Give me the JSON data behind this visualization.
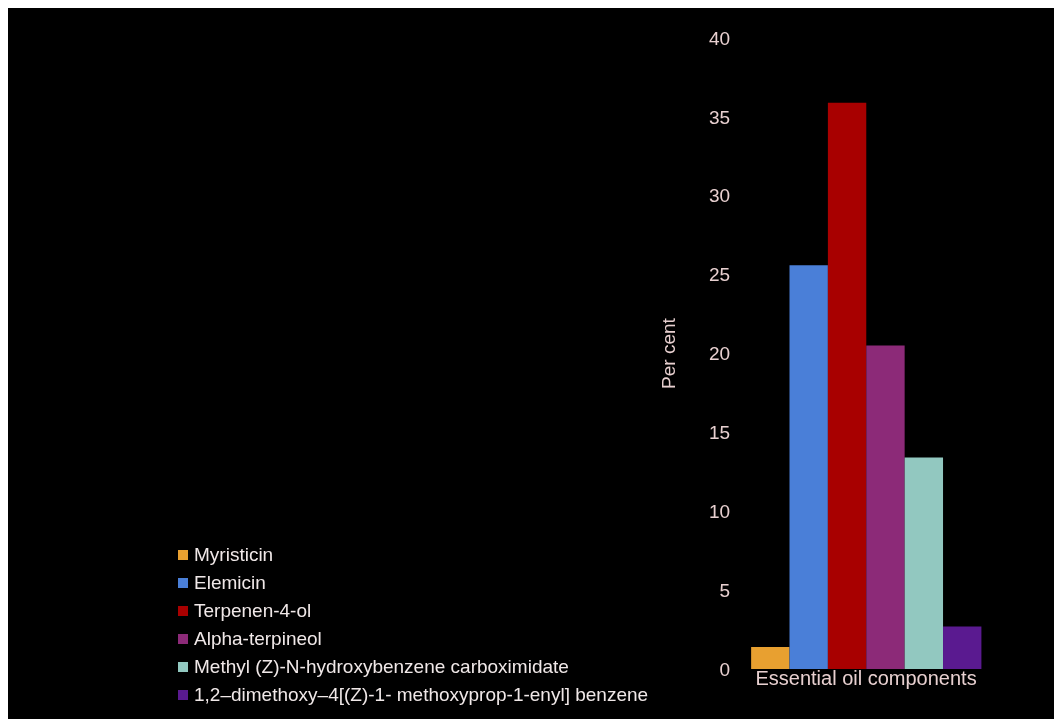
{
  "chart_data": {
    "type": "bar",
    "xlabel": "Essential oil  components",
    "ylabel": "Per cent",
    "categories": [
      null
    ],
    "ylim": [
      0,
      40
    ],
    "yticks": [
      0,
      5,
      10,
      15,
      20,
      25,
      30,
      35,
      40
    ],
    "legend": "bottom",
    "series": [
      {
        "name": "Myristicin",
        "color": "#e8a030",
        "values": [
          1.4
        ]
      },
      {
        "name": "Elemicin",
        "color": "#4a7fd8",
        "values": [
          25.6
        ]
      },
      {
        "name": "Terpenen-4-ol",
        "color": "#a80000",
        "values": [
          35.9
        ]
      },
      {
        "name": "Alpha-terpineol",
        "color": "#8c2a78",
        "values": [
          20.5
        ]
      },
      {
        "name": "Methyl (Z)-N-hydroxybenzene carboximidate",
        "color": "#92c8c0",
        "values": [
          13.4
        ]
      },
      {
        "name": "1,2–dimethoxy–4[(Z)-1- methoxyprop-1-enyl] benzene",
        "color": "#5a1a90",
        "values": [
          2.7
        ]
      }
    ]
  }
}
